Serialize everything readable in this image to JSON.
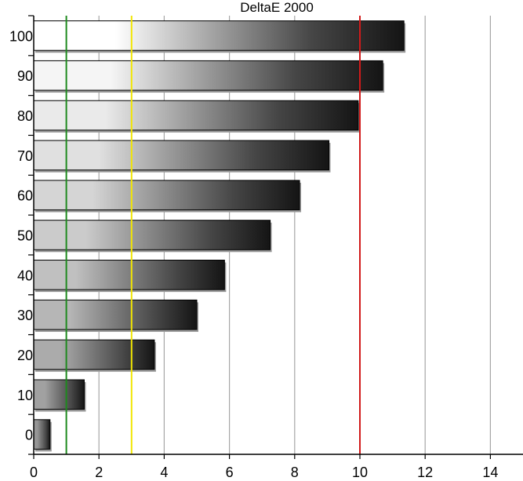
{
  "chart_data": {
    "type": "bar",
    "orientation": "horizontal",
    "title": "DeltaE 2000",
    "xlabel": "",
    "ylabel": "",
    "categories": [
      "0",
      "10",
      "20",
      "30",
      "40",
      "50",
      "60",
      "70",
      "80",
      "90",
      "100"
    ],
    "values": [
      0.5,
      1.55,
      3.7,
      5.0,
      5.85,
      7.25,
      8.15,
      9.05,
      9.95,
      10.7,
      11.35
    ],
    "xlim": [
      0,
      15
    ],
    "xticks": [
      "0",
      "2",
      "4",
      "6",
      "8",
      "10",
      "12",
      "14"
    ],
    "grid": true,
    "reference_lines": [
      {
        "x": 1,
        "color": "#1e8a1e"
      },
      {
        "x": 3,
        "color": "#f2e600"
      },
      {
        "x": 10,
        "color": "#d11a1a"
      }
    ],
    "colors": {
      "grid": "#a6a6a6",
      "bar_outline": "#000000"
    }
  }
}
